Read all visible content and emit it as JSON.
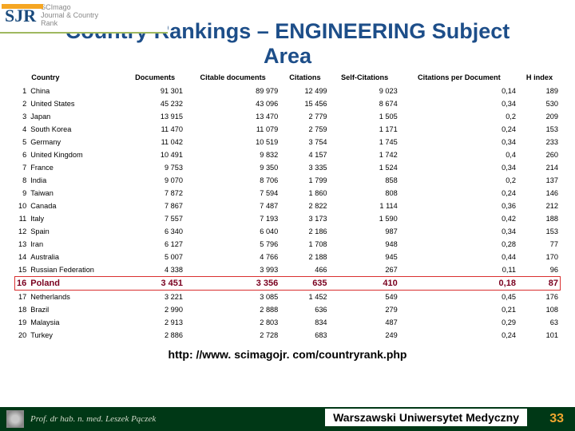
{
  "logo": {
    "mark": "SJR",
    "text_l1": "SCImago",
    "text_l2": "Journal & Country",
    "text_l3": "Rank"
  },
  "title_l1": "Country Rankings – ENGINEERING Subject",
  "title_l2": "Area",
  "columns": [
    "Country",
    "Documents",
    "Citable documents",
    "Citations",
    "Self-Citations",
    "Citations per Document",
    "H index"
  ],
  "highlight_index": 15,
  "rows": [
    {
      "rank": "1",
      "country": "China",
      "docs": "91 301",
      "citable": "89 979",
      "cit": "12 499",
      "self": "9 023",
      "cpd": "0,14",
      "h": "189"
    },
    {
      "rank": "2",
      "country": "United States",
      "docs": "45 232",
      "citable": "43 096",
      "cit": "15 456",
      "self": "8 674",
      "cpd": "0,34",
      "h": "530"
    },
    {
      "rank": "3",
      "country": "Japan",
      "docs": "13 915",
      "citable": "13 470",
      "cit": "2 779",
      "self": "1 505",
      "cpd": "0,2",
      "h": "209"
    },
    {
      "rank": "4",
      "country": "South Korea",
      "docs": "11 470",
      "citable": "11 079",
      "cit": "2 759",
      "self": "1 171",
      "cpd": "0,24",
      "h": "153"
    },
    {
      "rank": "5",
      "country": "Germany",
      "docs": "11 042",
      "citable": "10 519",
      "cit": "3 754",
      "self": "1 745",
      "cpd": "0,34",
      "h": "233"
    },
    {
      "rank": "6",
      "country": "United Kingdom",
      "docs": "10 491",
      "citable": "9 832",
      "cit": "4 157",
      "self": "1 742",
      "cpd": "0,4",
      "h": "260"
    },
    {
      "rank": "7",
      "country": "France",
      "docs": "9 753",
      "citable": "9 350",
      "cit": "3 335",
      "self": "1 524",
      "cpd": "0,34",
      "h": "214"
    },
    {
      "rank": "8",
      "country": "India",
      "docs": "9 070",
      "citable": "8 706",
      "cit": "1 799",
      "self": "858",
      "cpd": "0,2",
      "h": "137"
    },
    {
      "rank": "9",
      "country": "Taiwan",
      "docs": "7 872",
      "citable": "7 594",
      "cit": "1 860",
      "self": "808",
      "cpd": "0,24",
      "h": "146"
    },
    {
      "rank": "10",
      "country": "Canada",
      "docs": "7 867",
      "citable": "7 487",
      "cit": "2 822",
      "self": "1 114",
      "cpd": "0,36",
      "h": "212"
    },
    {
      "rank": "11",
      "country": "Italy",
      "docs": "7 557",
      "citable": "7 193",
      "cit": "3 173",
      "self": "1 590",
      "cpd": "0,42",
      "h": "188"
    },
    {
      "rank": "12",
      "country": "Spain",
      "docs": "6 340",
      "citable": "6 040",
      "cit": "2 186",
      "self": "987",
      "cpd": "0,34",
      "h": "153"
    },
    {
      "rank": "13",
      "country": "Iran",
      "docs": "6 127",
      "citable": "5 796",
      "cit": "1 708",
      "self": "948",
      "cpd": "0,28",
      "h": "77"
    },
    {
      "rank": "14",
      "country": "Australia",
      "docs": "5 007",
      "citable": "4 766",
      "cit": "2 188",
      "self": "945",
      "cpd": "0,44",
      "h": "170"
    },
    {
      "rank": "15",
      "country": "Russian Federation",
      "docs": "4 338",
      "citable": "3 993",
      "cit": "466",
      "self": "267",
      "cpd": "0,11",
      "h": "96"
    },
    {
      "rank": "16",
      "country": "Poland",
      "docs": "3 451",
      "citable": "3 356",
      "cit": "635",
      "self": "410",
      "cpd": "0,18",
      "h": "87"
    },
    {
      "rank": "17",
      "country": "Netherlands",
      "docs": "3 221",
      "citable": "3 085",
      "cit": "1 452",
      "self": "549",
      "cpd": "0,45",
      "h": "176"
    },
    {
      "rank": "18",
      "country": "Brazil",
      "docs": "2 990",
      "citable": "2 888",
      "cit": "636",
      "self": "279",
      "cpd": "0,21",
      "h": "108"
    },
    {
      "rank": "19",
      "country": "Malaysia",
      "docs": "2 913",
      "citable": "2 803",
      "cit": "834",
      "self": "487",
      "cpd": "0,29",
      "h": "63"
    },
    {
      "rank": "20",
      "country": "Turkey",
      "docs": "2 886",
      "citable": "2 728",
      "cit": "683",
      "self": "249",
      "cpd": "0,24",
      "h": "101"
    }
  ],
  "link": "http: //www. scimagojr. com/countryrank.php",
  "footer": {
    "name": "Prof. dr hab. n. med. Leszek Pączek",
    "center": "Warszawski Uniwersytet Medyczny",
    "page": "33"
  }
}
